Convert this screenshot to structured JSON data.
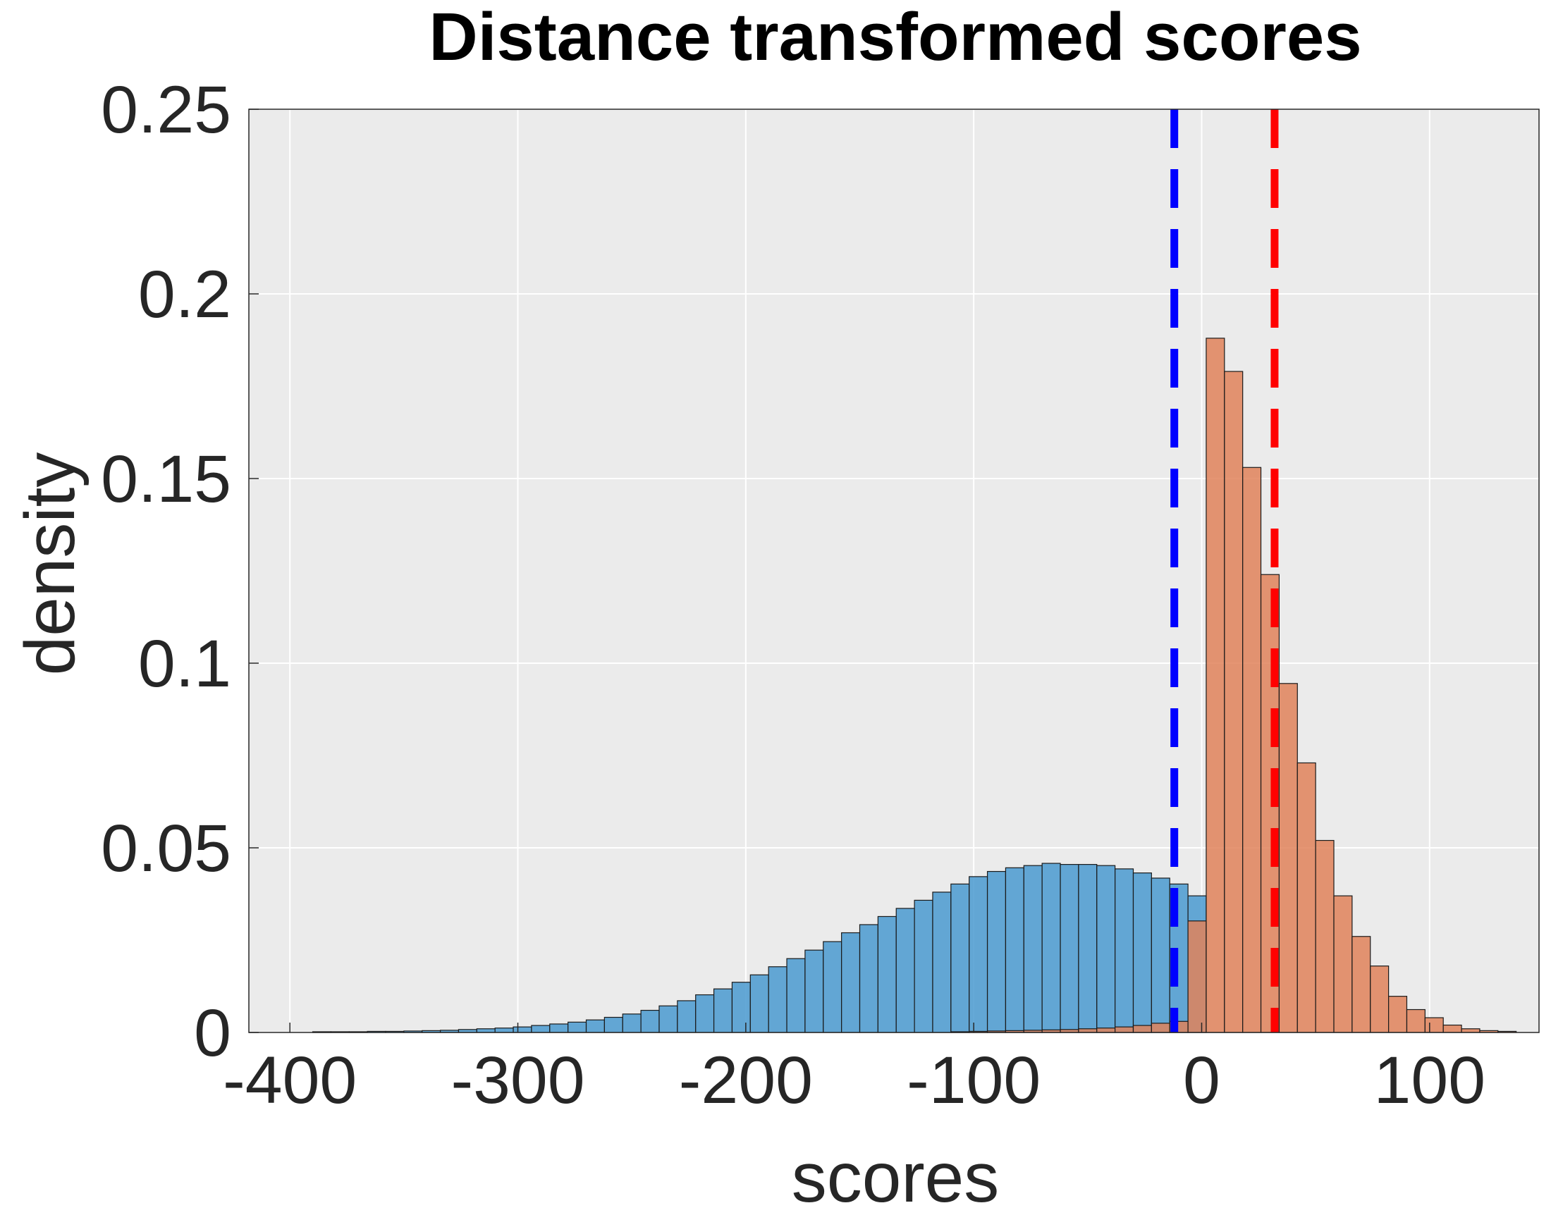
{
  "chart_data": {
    "type": "bar",
    "title": "Distance transformed scores",
    "xlabel": "scores",
    "ylabel": "density",
    "xlim": [
      -418,
      148
    ],
    "ylim": [
      0,
      0.25
    ],
    "xticks": [
      -400,
      -300,
      -200,
      -100,
      0,
      100
    ],
    "xtick_labels": [
      "-400",
      "-300",
      "-200",
      "-100",
      "0",
      "100"
    ],
    "yticks": [
      0,
      0.05,
      0.1,
      0.15,
      0.2,
      0.25
    ],
    "ytick_labels": [
      "0",
      "0.05",
      "0.1",
      "0.15",
      "0.2",
      "0.25"
    ],
    "grid": true,
    "background": "#ebebeb",
    "series": [
      {
        "color": "#4a9ad0",
        "bin_width": 8,
        "bin_edges": [
          -390,
          -382,
          -374,
          -366,
          -358,
          -350,
          -342,
          -334,
          -326,
          -318,
          -310,
          -302,
          -294,
          -286,
          -278,
          -270,
          -262,
          -254,
          -246,
          -238,
          -230,
          -222,
          -214,
          -206,
          -198,
          -190,
          -182,
          -174,
          -166,
          -158,
          -150,
          -142,
          -134,
          -126,
          -118,
          -110,
          -102,
          -94,
          -86,
          -78,
          -70,
          -62,
          -54,
          -46,
          -38,
          -30,
          -22,
          -14,
          -6
        ],
        "values": [
          0.0002,
          0.0002,
          0.0002,
          0.0003,
          0.0003,
          0.0004,
          0.0005,
          0.0006,
          0.0008,
          0.001,
          0.0012,
          0.0015,
          0.0019,
          0.0023,
          0.0028,
          0.0034,
          0.0041,
          0.005,
          0.006,
          0.0072,
          0.0086,
          0.0102,
          0.0118,
          0.0136,
          0.0156,
          0.0178,
          0.02,
          0.0223,
          0.0246,
          0.027,
          0.0292,
          0.0314,
          0.0336,
          0.0358,
          0.038,
          0.0402,
          0.0422,
          0.0436,
          0.0446,
          0.0452,
          0.0458,
          0.0455,
          0.0455,
          0.0452,
          0.0443,
          0.0432,
          0.0418,
          0.0402,
          0.037
        ]
      },
      {
        "color": "#e0825b",
        "bin_width": 8,
        "bin_edges": [
          -110,
          -102,
          -94,
          -86,
          -78,
          -70,
          -62,
          -54,
          -46,
          -38,
          -30,
          -22,
          -14,
          -6,
          2,
          10,
          18,
          26,
          34,
          42,
          50,
          58,
          66,
          74,
          82,
          90,
          98,
          106,
          114,
          122,
          130
        ],
        "values": [
          0.0002,
          0.0003,
          0.0004,
          0.0005,
          0.0006,
          0.0007,
          0.0008,
          0.001,
          0.0012,
          0.0015,
          0.0019,
          0.0025,
          0.003,
          0.0302,
          0.188,
          0.179,
          0.153,
          0.124,
          0.0945,
          0.073,
          0.052,
          0.037,
          0.026,
          0.018,
          0.0098,
          0.0062,
          0.004,
          0.002,
          0.001,
          0.0005,
          0.0003
        ]
      }
    ],
    "vlines": [
      {
        "x": -12,
        "color": "#0000ff",
        "style": "dashed"
      },
      {
        "x": 32,
        "color": "#ff0000",
        "style": "dashed"
      }
    ]
  }
}
